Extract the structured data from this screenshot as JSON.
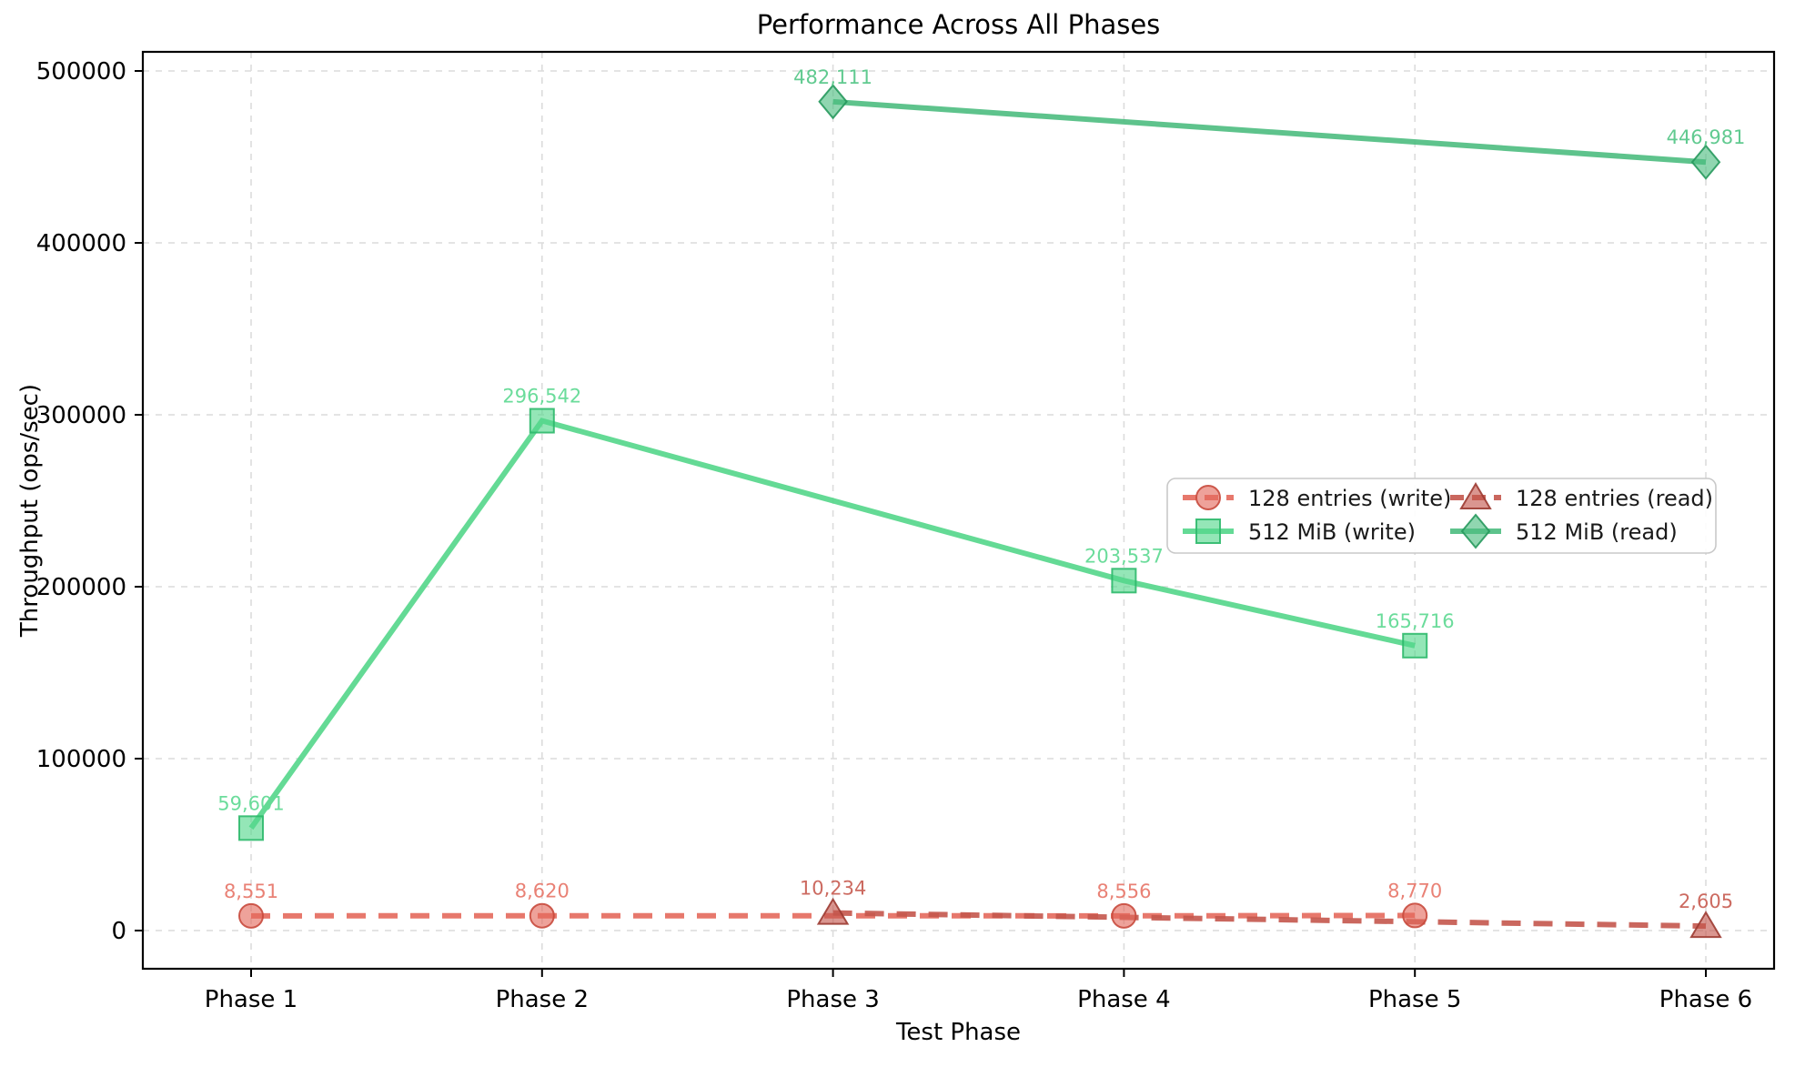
{
  "chart_data": {
    "type": "line",
    "title": "Performance Across All Phases",
    "xlabel": "Test Phase",
    "ylabel": "Throughput (ops/sec)",
    "categories": [
      "Phase 1",
      "Phase 2",
      "Phase 3",
      "Phase 4",
      "Phase 5",
      "Phase 6"
    ],
    "y_ticks": [
      0,
      100000,
      200000,
      300000,
      400000,
      500000
    ],
    "ylim": [
      -22000,
      508000
    ],
    "grid": true,
    "legend_position": "center-right",
    "series": [
      {
        "name": "128 entries (write)",
        "marker": "circle",
        "linestyle": "dashed",
        "color": "#e4695c",
        "edge_color": "#c84a3d",
        "label_color": "#e87a6e",
        "points": [
          {
            "category": "Phase 1",
            "x": 1,
            "value": 8551,
            "label": "8,551"
          },
          {
            "category": "Phase 2",
            "x": 2,
            "value": 8620,
            "label": "8,620"
          },
          {
            "category": "Phase 4",
            "x": 4,
            "value": 8556,
            "label": "8,556"
          },
          {
            "category": "Phase 5",
            "x": 5,
            "value": 8770,
            "label": "8,770"
          }
        ]
      },
      {
        "name": "512 MiB (write)",
        "marker": "square",
        "linestyle": "solid",
        "color": "#53d68a",
        "edge_color": "#2eb96c",
        "label_color": "#63da96",
        "points": [
          {
            "category": "Phase 1",
            "x": 1,
            "value": 59601,
            "label": "59,601"
          },
          {
            "category": "Phase 2",
            "x": 2,
            "value": 296542,
            "label": "296,542"
          },
          {
            "category": "Phase 4",
            "x": 4,
            "value": 203537,
            "label": "203,537"
          },
          {
            "category": "Phase 5",
            "x": 5,
            "value": 165716,
            "label": "165,716"
          }
        ]
      },
      {
        "name": "128 entries (read)",
        "marker": "triangle",
        "linestyle": "dashed",
        "color": "#c4564c",
        "edge_color": "#9c3b32",
        "label_color": "#c96257",
        "points": [
          {
            "category": "Phase 3",
            "x": 3,
            "value": 10234,
            "label": "10,234"
          },
          {
            "category": "Phase 6",
            "x": 6,
            "value": 2605,
            "label": "2,605"
          }
        ]
      },
      {
        "name": "512 MiB (read)",
        "marker": "diamond",
        "linestyle": "solid",
        "color": "#4cbd80",
        "edge_color": "#27995d",
        "label_color": "#58c78a",
        "points": [
          {
            "category": "Phase 3",
            "x": 3,
            "value": 482111,
            "label": "482,111"
          },
          {
            "category": "Phase 6",
            "x": 6,
            "value": 446981,
            "label": "446,981"
          }
        ]
      }
    ]
  }
}
